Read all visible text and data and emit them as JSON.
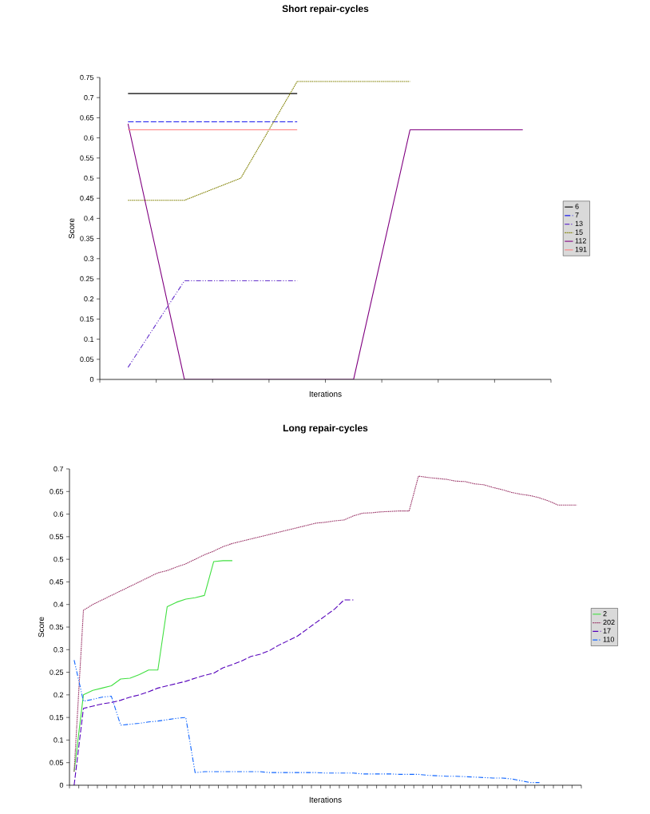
{
  "chart_data": [
    {
      "type": "line",
      "title": "Short repair-cycles",
      "xlabel": "Iterations",
      "ylabel": "Score",
      "categories": [
        null,
        null,
        null,
        null,
        null,
        null,
        null,
        null
      ],
      "ylim": [
        0,
        0.75
      ],
      "yticks": [
        0,
        0.05,
        0.1,
        0.15,
        0.2,
        0.25,
        0.3,
        0.35,
        0.4,
        0.45,
        0.5,
        0.55,
        0.6,
        0.65,
        0.7,
        0.75
      ],
      "legend": "right",
      "grid": false,
      "series": [
        {
          "name": "6",
          "color": "#000000",
          "line_style": "solid",
          "values": [
            0.71,
            0.71,
            0.71,
            0.71,
            null,
            null,
            null,
            null
          ]
        },
        {
          "name": "7",
          "color": "#1a1aee",
          "line_style": "dashed",
          "values": [
            0.64,
            0.64,
            0.64,
            0.64,
            null,
            null,
            null,
            null
          ]
        },
        {
          "name": "13",
          "color": "#6633cc",
          "line_style": "dashdot",
          "values": [
            0.03,
            0.245,
            0.245,
            0.245,
            null,
            null,
            null,
            null
          ]
        },
        {
          "name": "15",
          "color": "#808000",
          "line_style": "dotted",
          "values": [
            0.445,
            0.445,
            0.5,
            0.74,
            0.74,
            0.74,
            null,
            null
          ]
        },
        {
          "name": "112",
          "color": "#800080",
          "line_style": "solid",
          "values": [
            0.635,
            0,
            0,
            0,
            0,
            0.62,
            0.62,
            0.62
          ]
        },
        {
          "name": "191",
          "color": "#ff8080",
          "line_style": "solid",
          "values": [
            0.62,
            0.62,
            0.62,
            0.62,
            null,
            null,
            null,
            null
          ]
        }
      ]
    },
    {
      "type": "line",
      "title": "Long repair-cycles",
      "xlabel": "Iterations",
      "ylabel": "Score",
      "categories": [
        null,
        null,
        null,
        null,
        null,
        null,
        null,
        null,
        null,
        null,
        null,
        null,
        null,
        null,
        null,
        null,
        null,
        null,
        null,
        null,
        null,
        null,
        null,
        null,
        null,
        null,
        null,
        null,
        null,
        null,
        null,
        null,
        null,
        null,
        null,
        null,
        null,
        null,
        null,
        null,
        null,
        null,
        null,
        null,
        null,
        null,
        null,
        null,
        null,
        null,
        null,
        null,
        null,
        null,
        null
      ],
      "ylim": [
        0,
        0.7
      ],
      "yticks": [
        0,
        0.05,
        0.1,
        0.15,
        0.2,
        0.25,
        0.3,
        0.35,
        0.4,
        0.45,
        0.5,
        0.55,
        0.6,
        0.65,
        0.7
      ],
      "legend": "right",
      "grid": false,
      "series": [
        {
          "name": "2",
          "color": "#40e040",
          "line_style": "solid",
          "values": [
            0.03,
            0.2,
            0.21,
            0.215,
            0.22,
            0.235,
            0.237,
            0.245,
            0.255,
            0.255,
            0.395,
            0.405,
            0.412,
            0.415,
            0.42,
            0.495,
            0.497,
            0.497,
            null,
            null,
            null,
            null,
            null,
            null,
            null,
            null,
            null,
            null,
            null,
            null,
            null,
            null,
            null,
            null,
            null,
            null,
            null,
            null,
            null,
            null,
            null,
            null,
            null,
            null,
            null,
            null,
            null,
            null,
            null,
            null,
            null,
            null,
            null,
            null,
            null
          ]
        },
        {
          "name": "202",
          "color": "#993366",
          "line_style": "dotted",
          "values": [
            0.03,
            0.387,
            0.4,
            0.41,
            0.42,
            0.43,
            0.44,
            0.45,
            0.46,
            0.47,
            0.475,
            0.483,
            0.49,
            0.5,
            0.51,
            0.518,
            0.528,
            0.535,
            0.54,
            0.545,
            0.55,
            0.555,
            0.56,
            0.565,
            0.57,
            0.575,
            0.58,
            0.582,
            0.585,
            0.587,
            0.596,
            0.602,
            0.603,
            0.605,
            0.606,
            0.607,
            0.607,
            0.684,
            0.681,
            0.679,
            0.677,
            0.673,
            0.672,
            0.667,
            0.665,
            0.659,
            0.654,
            0.648,
            0.644,
            0.641,
            0.636,
            0.629,
            0.62,
            0.62,
            0.62
          ]
        },
        {
          "name": "17",
          "color": "#5500bb",
          "line_style": "dashed",
          "values": [
            0,
            0.17,
            0.175,
            0.18,
            0.183,
            0.188,
            0.195,
            0.2,
            0.207,
            0.215,
            0.22,
            0.225,
            0.23,
            0.237,
            0.243,
            0.248,
            0.26,
            0.267,
            0.275,
            0.285,
            0.29,
            0.298,
            0.31,
            0.32,
            0.33,
            0.345,
            0.36,
            0.375,
            0.39,
            0.41,
            0.41,
            null,
            null,
            null,
            null,
            null,
            null,
            null,
            null,
            null,
            null,
            null,
            null,
            null,
            null,
            null,
            null,
            null,
            null,
            null,
            null,
            null,
            null,
            null,
            null
          ]
        },
        {
          "name": "110",
          "color": "#1166ff",
          "line_style": "dashdot",
          "values": [
            0.277,
            0.186,
            0.19,
            0.195,
            0.197,
            0.133,
            0.135,
            0.137,
            0.14,
            0.142,
            0.145,
            0.148,
            0.15,
            0.028,
            0.03,
            0.03,
            0.03,
            0.03,
            0.03,
            0.03,
            0.03,
            0.028,
            0.028,
            0.028,
            0.028,
            0.028,
            0.028,
            0.027,
            0.027,
            0.027,
            0.027,
            0.025,
            0.025,
            0.025,
            0.025,
            0.024,
            0.024,
            0.024,
            0.022,
            0.021,
            0.02,
            0.02,
            0.019,
            0.018,
            0.017,
            0.016,
            0.016,
            0.014,
            0.01,
            0.006,
            0.006,
            null,
            null,
            null,
            null
          ]
        }
      ]
    }
  ]
}
